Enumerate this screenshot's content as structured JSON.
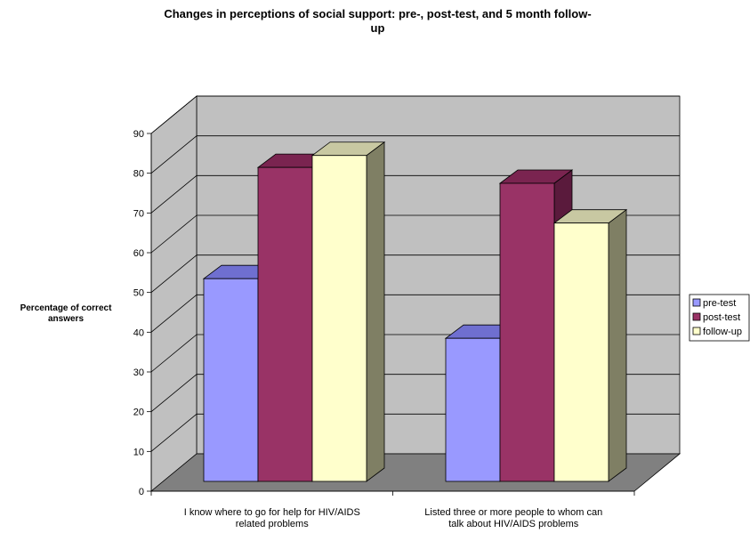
{
  "chart_data": {
    "type": "bar",
    "title_lines": [
      "Changes in perceptions of social support: pre-, post-test, and 5 month follow-",
      "up"
    ],
    "ylabel_lines": [
      "Percentage of correct",
      "answers"
    ],
    "xlabel": "",
    "ylim": [
      0,
      90
    ],
    "yticks": [
      0,
      10,
      20,
      30,
      40,
      50,
      60,
      70,
      80,
      90
    ],
    "grid": true,
    "style": "3d-clustered-column",
    "legend_position": "right",
    "categories": [
      [
        "I know where to go for help for HIV/AIDS",
        "related problems"
      ],
      [
        "Listed three or more people to whom can",
        "talk about HIV/AIDS problems"
      ]
    ],
    "series": [
      {
        "name": "pre-test",
        "values": [
          51,
          36
        ],
        "color": "#9999FF",
        "top_color": "#6F6FD0",
        "side_color": "#5C5CB0"
      },
      {
        "name": "post-test",
        "values": [
          79,
          75
        ],
        "color": "#993366",
        "top_color": "#7A2450",
        "side_color": "#5A1A3C"
      },
      {
        "name": "follow-up",
        "values": [
          82,
          65
        ],
        "color": "#FFFFCC",
        "top_color": "#C8C8A2",
        "side_color": "#7F7F64"
      }
    ],
    "colors": {
      "back_wall": "#C0C0C0",
      "side_wall": "#C0C0C0",
      "floor": "#808080",
      "gridline": "#000000"
    }
  }
}
